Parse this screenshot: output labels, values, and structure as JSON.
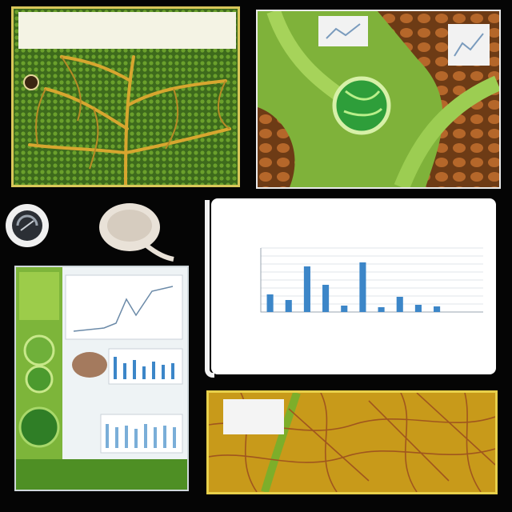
{
  "top_caption": "",
  "panels": {
    "top_left": {
      "title": ""
    },
    "chart_card": {
      "title_line1": "",
      "title_line2": "",
      "chart_data": {
        "type": "bar",
        "categories": [
          "",
          "",
          "",
          "",
          "",
          "",
          "",
          "",
          "",
          "",
          "",
          ""
        ],
        "values": [
          22,
          15,
          57,
          34,
          8,
          62,
          6,
          19,
          9,
          7,
          0,
          0
        ],
        "ylim": [
          0,
          80
        ],
        "grid": true,
        "bar_color": "#3c86c8"
      }
    },
    "bottom_left": {
      "caption": ""
    },
    "bottom_right": {
      "label": ""
    }
  },
  "colors": {
    "background": "#050505",
    "leaf_green": "#5d8f22",
    "vein_gold": "#d9a52e",
    "accent_cyan": "#2fa5c9"
  },
  "icons": [
    "magnifier-circle-icon",
    "seed-icon"
  ]
}
